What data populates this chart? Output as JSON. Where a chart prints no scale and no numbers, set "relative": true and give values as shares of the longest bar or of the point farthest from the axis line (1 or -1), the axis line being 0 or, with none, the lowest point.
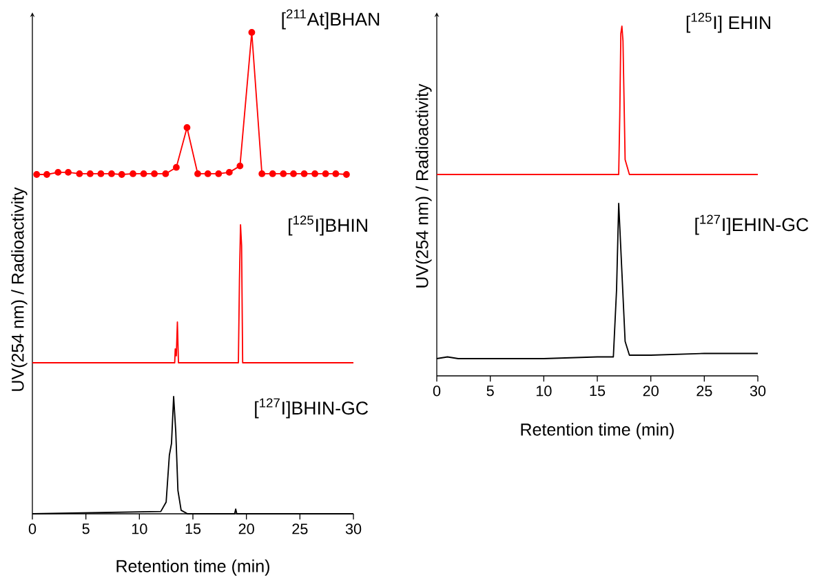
{
  "chart_data": [
    {
      "type": "line",
      "title": "[$^{211}$At]BHAN",
      "relative": true,
      "xlim": [
        0,
        30
      ],
      "tick_labels": false,
      "marker": "circle",
      "color": "#ff0000",
      "x": [
        0.4,
        1.35,
        2.4,
        3.35,
        4.4,
        5.4,
        6.4,
        7.4,
        8.35,
        9.4,
        10.4,
        11.4,
        12.45,
        13.45,
        14.45,
        15.45,
        16.4,
        17.4,
        18.4,
        19.4,
        20.5,
        21.45,
        22.45,
        23.45,
        24.4,
        25.4,
        26.4,
        27.4,
        28.35,
        29.35
      ],
      "values": [
        0,
        0,
        0.015,
        0.015,
        0.005,
        0.005,
        0.005,
        0.005,
        0,
        0.005,
        0.005,
        0.005,
        0.005,
        0.05,
        0.33,
        0.005,
        0.005,
        0.005,
        0.015,
        0.06,
        1,
        0.005,
        0.005,
        0.005,
        0.005,
        0.005,
        0.005,
        0.005,
        0.005,
        0
      ]
    },
    {
      "type": "line",
      "title": "[$^{125}$I]BHIN",
      "ylabel": "UV(254 nm) / Radioactivity",
      "relative": true,
      "xlim": [
        0,
        30
      ],
      "tick_labels": false,
      "color": "#ff0000",
      "x": [
        0,
        13.3,
        13.35,
        13.45,
        13.55,
        13.65,
        19.25,
        19.35,
        19.45,
        19.55,
        19.65,
        30
      ],
      "values": [
        0,
        0,
        0.1,
        0.05,
        0.295,
        0,
        0,
        0.6,
        1,
        0.85,
        0,
        0
      ]
    },
    {
      "type": "line",
      "title": "[$^{127}$I]BHIN-GC",
      "xlabel": "Retention time (min)",
      "relative": true,
      "xlim": [
        0,
        30
      ],
      "xticks": [
        0,
        5,
        10,
        15,
        20,
        25,
        30
      ],
      "tick_labels": "x",
      "color": "#000000",
      "x": [
        0,
        12,
        12.5,
        12.8,
        13.0,
        13.2,
        13.4,
        13.6,
        13.9,
        14.5,
        18.9,
        19,
        19.1,
        30
      ],
      "values": [
        0,
        0.02,
        0.1,
        0.5,
        0.6,
        1,
        0.7,
        0.2,
        0.03,
        0,
        0,
        0.04,
        0,
        0
      ]
    },
    {
      "type": "line",
      "title": "[$^{125}$I] EHIN",
      "ylabel": "UV(254 nm) / Radioactivity",
      "relative": true,
      "xlim": [
        0,
        30
      ],
      "tick_labels": false,
      "color": "#ff0000",
      "x": [
        0,
        17.0,
        17.1,
        17.2,
        17.3,
        17.4,
        17.5,
        17.6,
        17.8,
        18,
        30
      ],
      "values": [
        0,
        0,
        0.4,
        0.95,
        1,
        0.9,
        0.5,
        0.1,
        0.05,
        0,
        0
      ]
    },
    {
      "type": "line",
      "title": "[$^{127}$I]EHIN-GC",
      "xlabel": "Retention time (min)",
      "relative": true,
      "xlim": [
        0,
        30
      ],
      "xticks": [
        0,
        5,
        10,
        15,
        20,
        25,
        30
      ],
      "tick_labels": "x",
      "color": "#000000",
      "x": [
        0,
        1,
        2,
        5,
        10,
        15,
        16.5,
        16.8,
        17,
        17.3,
        17.6,
        18,
        20,
        25,
        30
      ],
      "values": [
        0.1,
        0.11,
        0.1,
        0.1,
        0.1,
        0.11,
        0.11,
        0.5,
        1,
        0.6,
        0.2,
        0.12,
        0.12,
        0.13,
        0.13
      ]
    }
  ]
}
